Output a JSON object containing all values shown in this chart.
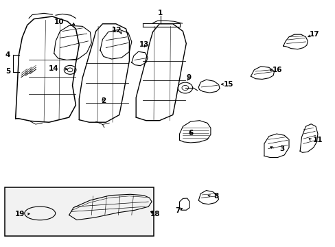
{
  "background_color": "#ffffff",
  "line_color": "#000000",
  "line_width": 0.8,
  "fig_width": 4.89,
  "fig_height": 3.6,
  "dpi": 100
}
